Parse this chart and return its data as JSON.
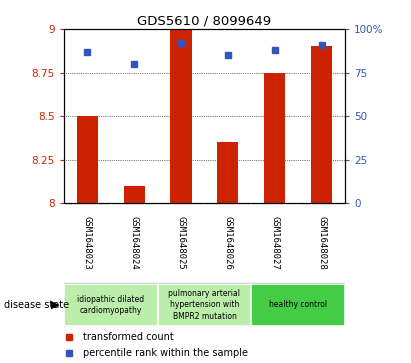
{
  "title": "GDS5610 / 8099649",
  "samples": [
    "GSM1648023",
    "GSM1648024",
    "GSM1648025",
    "GSM1648026",
    "GSM1648027",
    "GSM1648028"
  ],
  "red_values": [
    8.5,
    8.1,
    9.0,
    8.35,
    8.75,
    8.9
  ],
  "blue_values": [
    87,
    80,
    92,
    85,
    88,
    91
  ],
  "ylim_left": [
    8.0,
    9.0
  ],
  "ylim_right": [
    0,
    100
  ],
  "yticks_left": [
    8.0,
    8.25,
    8.5,
    8.75,
    9.0
  ],
  "yticks_right": [
    0,
    25,
    50,
    75,
    100
  ],
  "ytick_labels_left": [
    "8",
    "8.25",
    "8.5",
    "8.75",
    "9"
  ],
  "ytick_labels_right": [
    "0",
    "25",
    "50",
    "75",
    "100%"
  ],
  "disease_groups": [
    {
      "label": "idiopathic dilated\ncardiomyopathy",
      "start": 0,
      "end": 1,
      "color": "#bbeeaa"
    },
    {
      "label": "pulmonary arterial\nhypertension with\nBMPR2 mutation",
      "start": 2,
      "end": 3,
      "color": "#bbeeaa"
    },
    {
      "label": "healthy control",
      "start": 4,
      "end": 5,
      "color": "#44cc44"
    }
  ],
  "disease_state_label": "disease state",
  "legend_red_label": "transformed count",
  "legend_blue_label": "percentile rank within the sample",
  "bar_color": "#cc2200",
  "dot_color": "#3355bb",
  "background_color": "#ffffff",
  "plot_bg_color": "#ffffff",
  "tick_color_left": "#cc2200",
  "tick_color_right": "#3355bb",
  "grid_color": "#000000",
  "bar_base": 8.0,
  "sample_box_color": "#cccccc",
  "sample_box_border": "#aaaaaa"
}
